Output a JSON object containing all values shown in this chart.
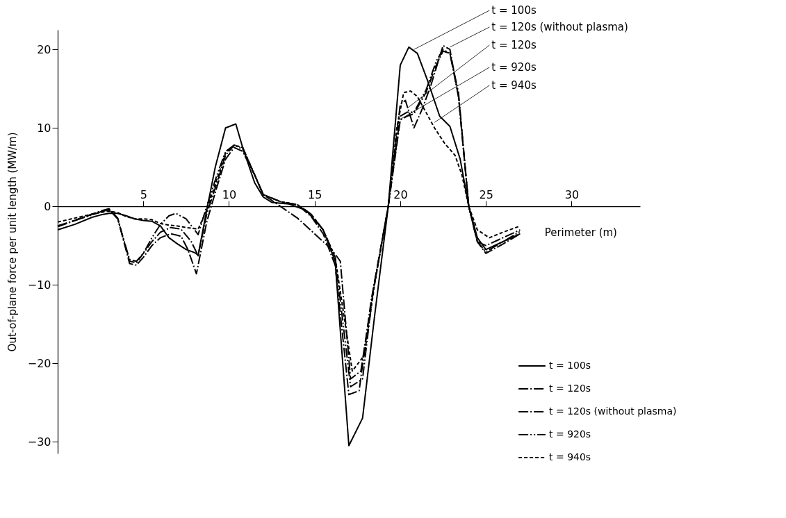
{
  "chart_data": {
    "type": "line",
    "xlabel": "Perimeter (m)",
    "ylabel": "Out-of-plane force per unit length  (MW/m)",
    "xlim": [
      0,
      34
    ],
    "ylim": [
      -31.5,
      22.5
    ],
    "xticks": [
      5,
      10,
      15,
      20,
      25,
      30
    ],
    "yticks": [
      -30,
      -20,
      -10,
      0,
      10,
      20
    ],
    "grid": false,
    "legend": "bottom right",
    "marker": "none",
    "series": [
      {
        "name": "t = 100s",
        "color": "#000000",
        "line_style": "solid",
        "x": [
          0,
          1,
          2,
          2.5,
          3,
          3.5,
          4,
          4.5,
          5,
          5.5,
          6,
          6.5,
          7,
          7.5,
          8,
          8.2,
          8.7,
          9.2,
          9.8,
          10.4,
          10.8,
          11.5,
          12,
          12.5,
          13.5,
          14.5,
          15.5,
          16.2,
          17.0,
          17.8,
          18.5,
          19.3,
          20.0,
          20.5,
          21.0,
          21.6,
          22.3,
          22.9,
          23.5,
          24.0,
          24.5,
          25.0,
          26.0,
          27.0
        ],
        "values": [
          -3,
          -2.3,
          -1.4,
          -1.1,
          -0.9,
          -0.9,
          -1.2,
          -1.6,
          -1.8,
          -1.9,
          -2.5,
          -4,
          -4.8,
          -5.5,
          -5.9,
          -6.2,
          -0.5,
          5,
          10,
          10.5,
          7.5,
          3,
          1.2,
          0.5,
          0.3,
          -0.5,
          -3,
          -7,
          -30.5,
          -27,
          -14,
          0,
          18,
          20.3,
          19.5,
          16,
          11.5,
          10.2,
          6,
          0,
          -4,
          -5.5,
          -4.5,
          -3.5
        ]
      },
      {
        "name": "t = 120s",
        "color": "#000000",
        "line_style": "dashdot",
        "x": [
          0,
          1,
          2,
          2.5,
          3,
          3.5,
          4.2,
          4.6,
          5,
          5.5,
          6,
          6.6,
          7.2,
          7.8,
          8.2,
          8.7,
          9.3,
          9.8,
          10.3,
          10.8,
          11.5,
          12,
          13,
          14,
          14.8,
          15.5,
          16.2,
          17.0,
          17.6,
          18.3,
          19.3,
          20.0,
          20.4,
          20.8,
          21.5,
          22.1,
          22.5,
          22.9,
          23.4,
          24.0,
          24.5,
          25.0,
          26.0,
          27.0
        ],
        "values": [
          -2.5,
          -1.8,
          -1,
          -0.6,
          -0.3,
          -1.5,
          -7,
          -7.2,
          -6,
          -4.5,
          -3.3,
          -2.7,
          -2.9,
          -4.5,
          -6.3,
          -1,
          3,
          6.5,
          7.8,
          7.5,
          4,
          1.5,
          0.6,
          0.2,
          -1.3,
          -3.5,
          -7.5,
          -24,
          -23.5,
          -12,
          0,
          11,
          11.5,
          11.8,
          14.5,
          18,
          19.8,
          19.5,
          14,
          0,
          -4.5,
          -6,
          -4.8,
          -3.5
        ]
      },
      {
        "name": "t = 120s (without plasma)",
        "color": "#000000",
        "line_style": "dashdot_thin",
        "x": [
          0,
          1,
          2,
          2.5,
          3,
          3.5,
          4.2,
          4.6,
          5,
          5.5,
          6,
          6.6,
          7.2,
          7.6,
          8.1,
          8.7,
          9.3,
          9.8,
          10.3,
          10.8,
          11.5,
          12,
          13,
          14,
          15,
          16,
          16.5,
          17.1,
          17.7,
          18.4,
          19.3,
          20.0,
          20.3,
          20.8,
          21.3,
          21.8,
          22.5,
          22.9,
          23.4,
          24.0,
          24.5,
          25.0,
          26.0,
          27.0
        ],
        "values": [
          -2.5,
          -1.8,
          -1,
          -0.7,
          -0.4,
          -1.5,
          -7.3,
          -7.5,
          -6.5,
          -5,
          -4,
          -3.5,
          -3.8,
          -5.5,
          -8.6,
          -2,
          2.5,
          6,
          7.5,
          7,
          4,
          1.5,
          0,
          -1.5,
          -3.5,
          -5.5,
          -7,
          -22,
          -21,
          -11,
          0,
          13,
          13.5,
          10,
          12.5,
          15.5,
          20.5,
          20,
          14,
          0,
          -4.5,
          -5,
          -4,
          -3
        ]
      },
      {
        "name": "t = 920s",
        "color": "#000000",
        "line_style": "dashdotdot",
        "x": [
          0,
          1,
          2,
          2.5,
          3,
          3.5,
          4.2,
          4.6,
          5,
          5.5,
          6,
          6.5,
          6.9,
          7.5,
          8.2,
          8.7,
          9.3,
          9.8,
          10.3,
          10.8,
          11.5,
          12,
          13,
          14,
          14.8,
          15.5,
          16.2,
          17.1,
          17.8,
          18.4,
          19.3,
          20.0,
          20.4,
          20.8,
          21.5,
          22.1,
          22.5,
          22.9,
          23.4,
          24.0,
          24.5,
          25.0,
          26.0,
          27.0
        ],
        "values": [
          -2.6,
          -1.8,
          -1.1,
          -0.7,
          -0.4,
          -1.6,
          -6.8,
          -7,
          -6,
          -4,
          -2.3,
          -1.2,
          -0.9,
          -1.6,
          -3.6,
          0,
          4,
          7,
          7.8,
          7.3,
          4,
          1.5,
          0.6,
          0.2,
          -1,
          -3,
          -6.5,
          -23,
          -22,
          -11,
          0,
          11.5,
          12,
          12,
          14.8,
          18.5,
          20,
          19.5,
          14.5,
          0,
          -4.5,
          -5.8,
          -4.5,
          -3.2
        ]
      },
      {
        "name": "t = 940s",
        "color": "#000000",
        "line_style": "dashed",
        "x": [
          0,
          1,
          2,
          2.5,
          3,
          3.5,
          4,
          4.5,
          5,
          5.5,
          6,
          6.5,
          7,
          7.5,
          8.2,
          8.7,
          9.3,
          9.8,
          10.3,
          10.8,
          11.5,
          12,
          13,
          14,
          14.8,
          15.5,
          16.2,
          17.2,
          17.9,
          18.5,
          19.3,
          19.8,
          20.2,
          20.6,
          21.0,
          21.5,
          22.0,
          22.6,
          23.2,
          23.6,
          24.0,
          24.5,
          25.2,
          26.0,
          27.0
        ],
        "values": [
          -2,
          -1.5,
          -1,
          -0.8,
          -0.6,
          -0.8,
          -1.3,
          -1.6,
          -1.6,
          -1.7,
          -2.2,
          -2.4,
          -2.5,
          -2.7,
          -2.9,
          -0.5,
          3.5,
          6.8,
          7.8,
          7.5,
          4,
          1.5,
          0.6,
          0.2,
          -1,
          -3,
          -6.5,
          -21,
          -19,
          -10,
          0,
          10,
          14.5,
          14.7,
          14,
          12,
          10,
          8,
          6.5,
          4,
          0,
          -3,
          -4,
          -3.3,
          -2.5
        ]
      }
    ],
    "annotations": [
      {
        "text": "t = 100s",
        "x": 20.8,
        "y": 20
      },
      {
        "text": "t = 120s (without plasma)",
        "x": 22.9,
        "y": 20.3
      },
      {
        "text": "t = 120s",
        "x": 20.4,
        "y": 12.5
      },
      {
        "text": "t = 920s",
        "x": 20.0,
        "y": 11.1
      },
      {
        "text": "t = 940s",
        "x": 22.0,
        "y": 10.7
      }
    ]
  }
}
